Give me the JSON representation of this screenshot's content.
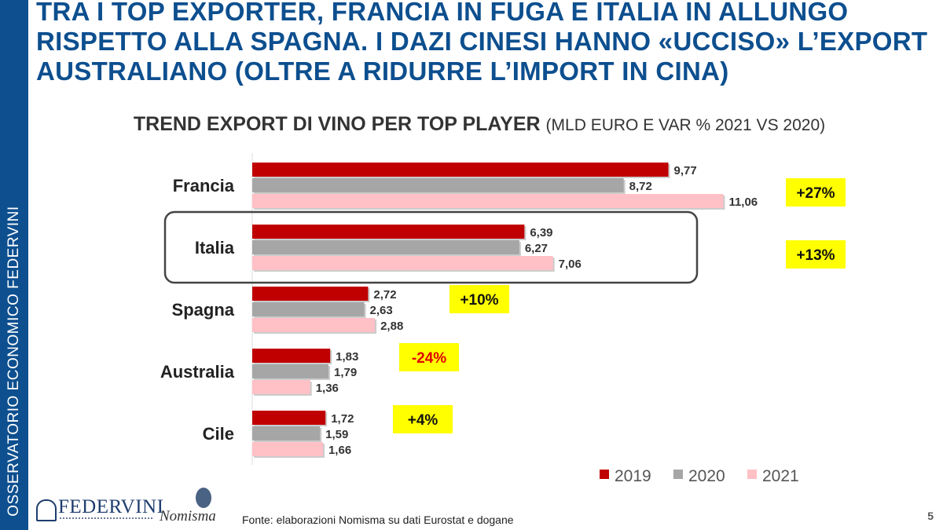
{
  "sidebar": {
    "text": "OSSERVATORIO ECONOMICO  FEDERVINI"
  },
  "title": "TRA I TOP EXPORTER, FRANCIA IN FUGA E ITALIA IN ALLUNGO RISPETTO ALLA SPAGNA. I DAZI CINESI HANNO «UCCISO» L’EXPORT AUSTRALIANO (OLTRE A RIDURRE L’IMPORT IN CINA)",
  "chart_data": {
    "type": "bar",
    "orientation": "horizontal",
    "title": "TREND EXPORT DI VINO PER TOP PLAYER",
    "subtitle": "(MLD EURO E VAR % 2021 VS 2020)",
    "categories": [
      "Francia",
      "Italia",
      "Spagna",
      "Australia",
      "Cile"
    ],
    "series": [
      {
        "name": "2019",
        "color": "#c00000",
        "values": [
          9.77,
          6.39,
          2.72,
          1.83,
          1.72
        ],
        "labels": [
          "9,77",
          "6,39",
          "2,72",
          "1,83",
          "1,72"
        ]
      },
      {
        "name": "2020",
        "color": "#a6a6a6",
        "values": [
          8.72,
          6.27,
          2.63,
          1.79,
          1.59
        ],
        "labels": [
          "8,72",
          "6,27",
          "2,63",
          "1,79",
          "1,59"
        ]
      },
      {
        "name": "2021",
        "color": "#ffc0c6",
        "values": [
          11.06,
          7.06,
          2.88,
          1.36,
          1.66
        ],
        "labels": [
          "11,06",
          "7,06",
          "2,88",
          "1,36",
          "1,66"
        ]
      }
    ],
    "variation": [
      "+27%",
      "+13%",
      "+10%",
      "-24%",
      "+4%"
    ],
    "variation_colors": [
      "#111111",
      "#111111",
      "#111111",
      "#e00000",
      "#111111"
    ],
    "highlight_box_color": "#ffff00",
    "highlighted_category": "Italia",
    "legend_position": "bottom-right",
    "xlim": [
      0,
      11.5
    ],
    "grid": false
  },
  "source": "Fonte: elaborazioni Nomisma su dati Eurostat e dogane",
  "page_number": "5",
  "logos": {
    "federvini": "FEDERVINI",
    "nomisma": "Nomisma"
  }
}
